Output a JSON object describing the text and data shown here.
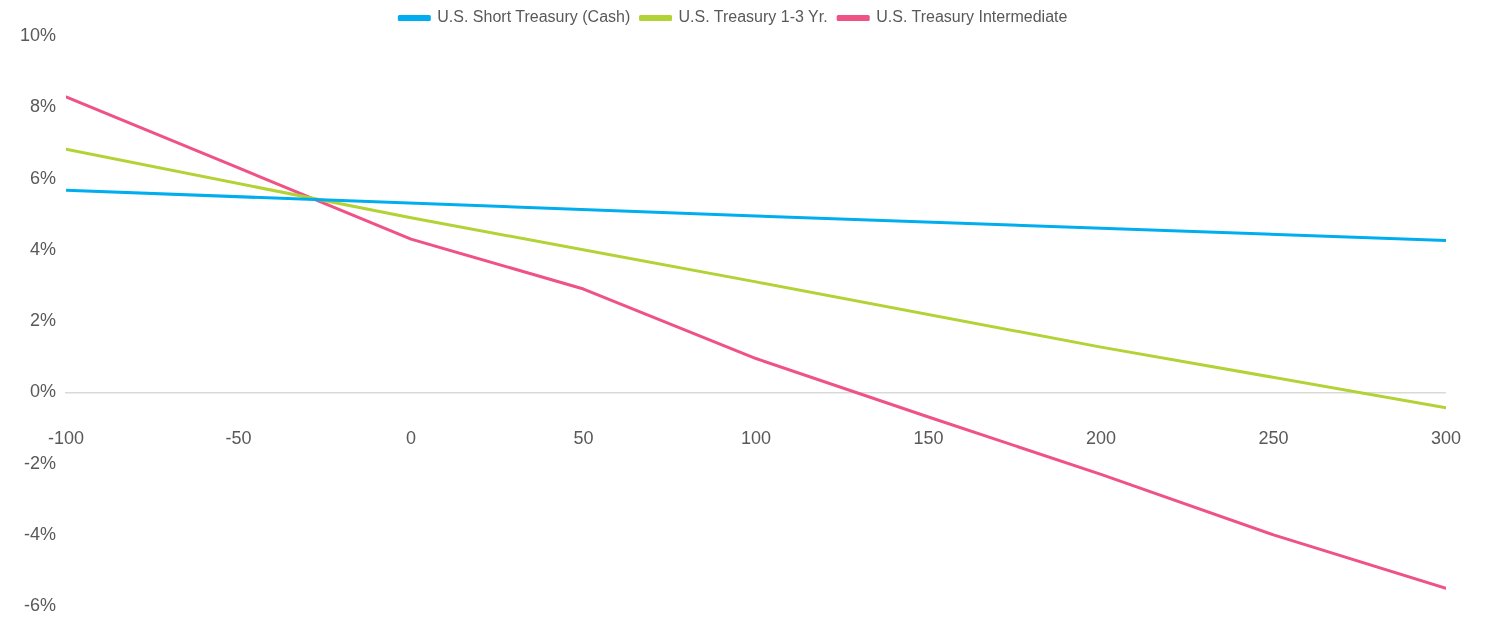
{
  "chart_data": {
    "type": "line",
    "legend": "top",
    "grid": false,
    "marker": "none",
    "line_style": "solid",
    "xlim": [
      -100,
      300
    ],
    "xticks": [
      -100,
      -50,
      0,
      50,
      100,
      150,
      200,
      250,
      300
    ],
    "ylim": [
      -6,
      10
    ],
    "yticks": [
      {
        "value": -6,
        "label": "-6%"
      },
      {
        "value": -4,
        "label": "-4%"
      },
      {
        "value": -2,
        "label": "-2%"
      },
      {
        "value": 0,
        "label": "0%"
      },
      {
        "value": 2,
        "label": "2%"
      },
      {
        "value": 4,
        "label": "4%"
      },
      {
        "value": 6,
        "label": "6%"
      },
      {
        "value": 8,
        "label": "8%"
      },
      {
        "value": 10,
        "label": "10%"
      }
    ],
    "series": [
      {
        "name": "U.S. Short Treasury (Cash)",
        "color": "#00aeef",
        "x": [
          -100,
          100,
          300
        ],
        "values": [
          5.67,
          4.95,
          4.26
        ]
      },
      {
        "name": "U.S. Treasury 1-3 Yr.",
        "color": "#b2d235",
        "x": [
          -100,
          0,
          100,
          200,
          300
        ],
        "values": [
          6.82,
          4.9,
          3.1,
          1.27,
          -0.43
        ]
      },
      {
        "name": "U.S. Treasury Intermediate",
        "color": "#ef5285",
        "x": [
          -100,
          -50,
          0,
          50,
          100,
          150,
          200,
          250,
          300
        ],
        "values": [
          8.29,
          6.3,
          4.3,
          2.9,
          0.95,
          -0.69,
          -2.3,
          -4.0,
          -5.5
        ]
      }
    ]
  }
}
